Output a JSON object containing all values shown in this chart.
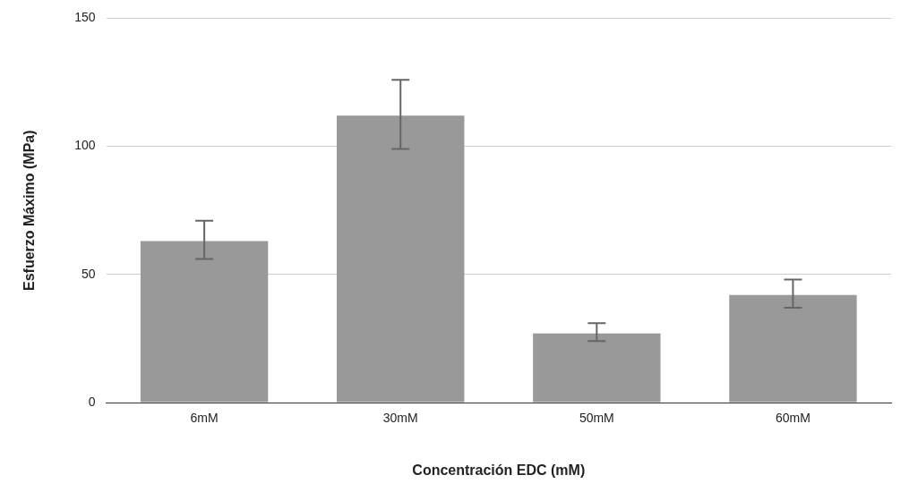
{
  "chart_data": {
    "type": "bar",
    "xlabel": "Concentración EDC (mM)",
    "ylabel": "Esfuerzo Máximo (MPa)",
    "categories": [
      "6mM",
      "30mM",
      "50mM",
      "60mM"
    ],
    "values": [
      63,
      112,
      27,
      42
    ],
    "errors": [
      [
        56,
        71
      ],
      [
        99,
        126
      ],
      [
        24,
        31
      ],
      [
        37,
        48
      ]
    ],
    "color": "#999999",
    "ylim": [
      0,
      150
    ],
    "yticks": [
      0,
      50,
      100,
      150
    ],
    "grid": "y",
    "legend": false
  }
}
